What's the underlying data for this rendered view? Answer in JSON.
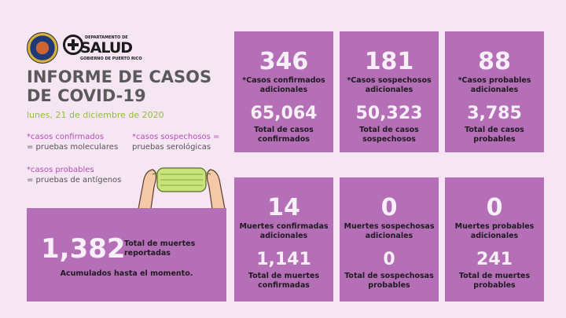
{
  "header": {
    "dept_line": "DEPARTAMENTO DE",
    "agency_name": "SALUD",
    "gov_line": "GOBIERNO DE PUERTO RICO",
    "title_line1": "INFORME DE CASOS",
    "title_line2": "DE COVID-19",
    "date": "lunes, 21 de diciembre de 2020"
  },
  "legend": {
    "confirmados_key": "*casos confirmados",
    "confirmados_def": "= pruebas moleculares",
    "sospechosos_key": "*casos sospechosos =",
    "sospechosos_def": "pruebas serológicas",
    "probables_key": "*casos probables",
    "probables_def": "= pruebas de antígenos"
  },
  "cards": [
    {
      "big": "346",
      "label": "*Casos confirmados adicionales",
      "total": "65,064",
      "total_label": "Total de casos confirmados"
    },
    {
      "big": "181",
      "label": "*Casos sospechosos adicionales",
      "total": "50,323",
      "total_label": "Total de casos sospechosos"
    },
    {
      "big": "88",
      "label": "*Casos probables adicionales",
      "total": "3,785",
      "total_label": "Total de casos probables"
    },
    {
      "big": "14",
      "label": "Muertes confirmadas adicionales",
      "total": "1,141",
      "total_label": "Total de muertes confirmadas"
    },
    {
      "big": "0",
      "label": "Muertes sospechosas adicionales",
      "total": "0",
      "total_label": "Total de sospechosas probables"
    },
    {
      "big": "0",
      "label": "Muertes probables adicionales",
      "total": "241",
      "total_label": "Total de muertes probables"
    }
  ],
  "deaths": {
    "total": "1,382",
    "label": "Total de muertes reportadas",
    "accum": "Acumulados hasta el momento."
  },
  "colors": {
    "card": "#b46fb7",
    "background": "#f6e6f4",
    "accent_green": "#8fbf3c",
    "legend_key": "#b24fb0"
  }
}
